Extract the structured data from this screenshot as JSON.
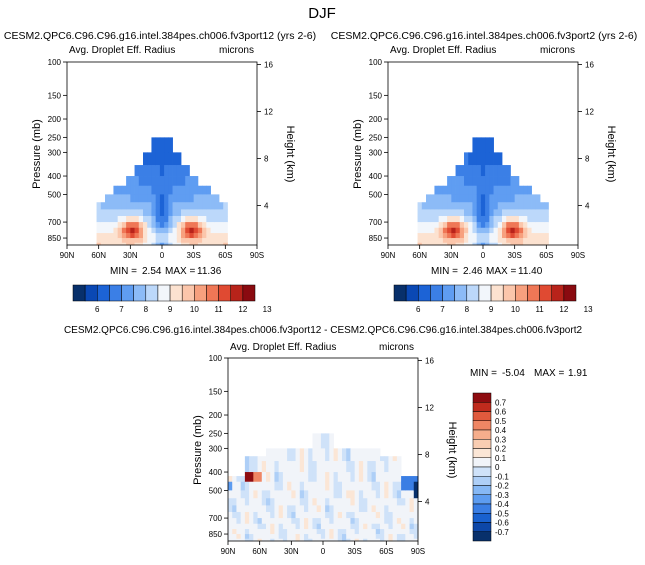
{
  "figure": {
    "title": "DJF"
  },
  "colors": {
    "abs": [
      "#08306b",
      "#0a48b4",
      "#1c63d6",
      "#3b7fe6",
      "#5f9df2",
      "#8cbbf7",
      "#bcd8fa",
      "#f2f6fb",
      "#fce2d0",
      "#fbc6ab",
      "#f7a07e",
      "#ef7756",
      "#e04a32",
      "#b8231a",
      "#8a0a10"
    ],
    "diff": [
      "#08306b",
      "#0d47a8",
      "#1961cf",
      "#3a7ee4",
      "#5d9cf0",
      "#86b8f5",
      "#aecff7",
      "#cfe2f9",
      "#f1f4f9",
      "#fbe6d6",
      "#f9cdb2",
      "#f6ae8c",
      "#ef8664",
      "#e05a3d",
      "#c02b1d",
      "#8e0c10"
    ]
  },
  "chart_data": [
    {
      "type": "heatmap",
      "title": "CESM2.QPC6.C96.C96.g16.intel.384pes.ch006.fv3port12 (yrs 2-6)",
      "left_title": "Avg. Droplet Eff. Radius",
      "right_title": "microns",
      "ylabel": "Pressure (mb)",
      "ylabel_right": "Height (km)",
      "x_ticks": [
        "90N",
        "60N",
        "30N",
        "0",
        "30S",
        "60S",
        "90S"
      ],
      "x_range": [
        -90,
        90
      ],
      "y_ticks": [
        "100",
        "150",
        "200",
        "250",
        "300",
        "400",
        "500",
        "700",
        "850"
      ],
      "y_ticks_right": [
        "16",
        "12",
        "8",
        "4"
      ],
      "y_range_mb": [
        100,
        925
      ],
      "min_label": "MIN =",
      "min_value": "2.54",
      "max_label": "MAX =",
      "max_value": "11.36",
      "colorbar_labels": [
        "6",
        "7",
        "8",
        "9",
        "10",
        "11",
        "12",
        "13"
      ],
      "colorbar_levels": [
        5.5,
        6,
        6.5,
        7,
        7.5,
        8,
        8.5,
        9,
        9.5,
        10,
        10.5,
        11,
        11.5,
        12,
        12.5,
        13,
        13.5
      ]
    },
    {
      "type": "heatmap",
      "title": "CESM2.QPC6.C96.C96.g16.intel.384pes.ch006.fv3port2 (yrs 2-6)",
      "left_title": "Avg. Droplet Eff. Radius",
      "right_title": "microns",
      "ylabel": "Pressure (mb)",
      "ylabel_right": "Height (km)",
      "x_ticks": [
        "90N",
        "60N",
        "30N",
        "0",
        "30S",
        "60S",
        "90S"
      ],
      "x_range": [
        -90,
        90
      ],
      "y_ticks": [
        "100",
        "150",
        "200",
        "250",
        "300",
        "400",
        "500",
        "700",
        "850"
      ],
      "y_ticks_right": [
        "16",
        "12",
        "8",
        "4"
      ],
      "y_range_mb": [
        100,
        925
      ],
      "min_label": "MIN =",
      "min_value": "2.46",
      "max_label": "MAX =",
      "max_value": "11.40",
      "colorbar_labels": [
        "6",
        "7",
        "8",
        "9",
        "10",
        "11",
        "12",
        "13"
      ],
      "colorbar_levels": [
        5.5,
        6,
        6.5,
        7,
        7.5,
        8,
        8.5,
        9,
        9.5,
        10,
        10.5,
        11,
        11.5,
        12,
        12.5,
        13,
        13.5
      ]
    },
    {
      "type": "heatmap",
      "title": "CESM2.QPC6.C96.C96.g16.intel.384pes.ch006.fv3port12 - CESM2.QPC6.C96.C96.g16.intel.384pes.ch006.fv3port2",
      "left_title": "Avg. Droplet Eff. Radius",
      "right_title": "microns",
      "ylabel": "Pressure (mb)",
      "ylabel_right": "Height (km)",
      "x_ticks": [
        "90N",
        "60N",
        "30N",
        "0",
        "30S",
        "60S",
        "90S"
      ],
      "x_range": [
        -90,
        90
      ],
      "y_ticks": [
        "100",
        "150",
        "200",
        "250",
        "300",
        "400",
        "500",
        "700",
        "850"
      ],
      "y_ticks_right": [
        "16",
        "12",
        "8",
        "4"
      ],
      "y_range_mb": [
        100,
        925
      ],
      "min_label": "MIN =",
      "min_value": "-5.04",
      "max_label": "MAX =",
      "max_value": "1.91",
      "colorbar_labels": [
        "0.7",
        "0.6",
        "0.5",
        "0.4",
        "0.3",
        "0.2",
        "0.1",
        "0",
        "-0.1",
        "-0.2",
        "-0.3",
        "-0.4",
        "-0.5",
        "-0.6",
        "-0.7"
      ]
    }
  ]
}
